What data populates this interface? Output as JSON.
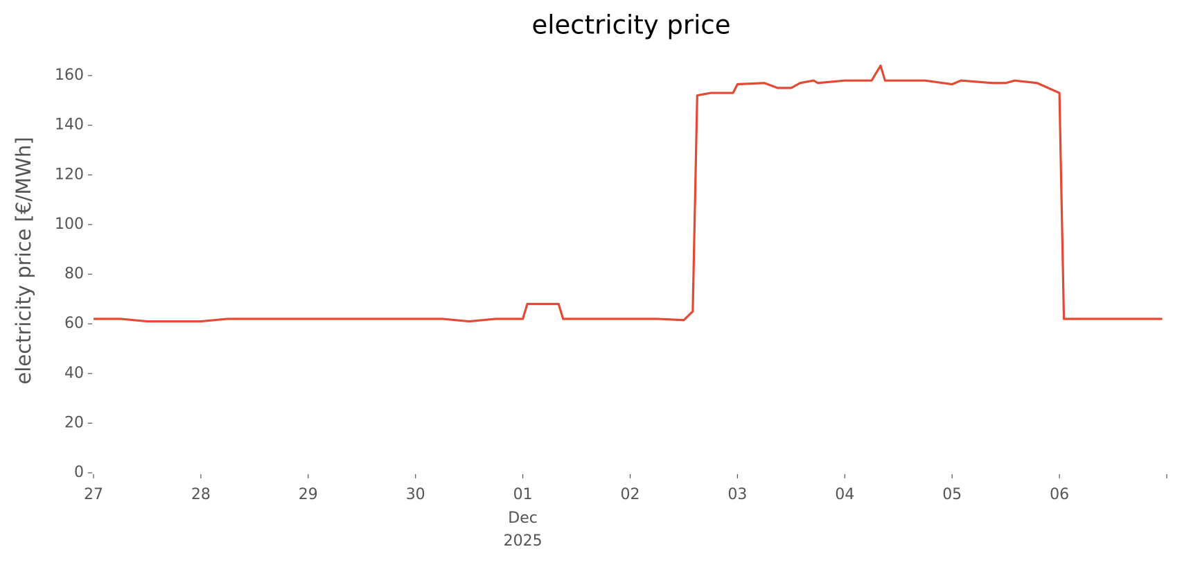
{
  "chart_data": {
    "type": "line",
    "title": "electricity price",
    "y_label": "electricity price [€/MWh]",
    "x_month_label": "Dec",
    "x_year_label": "2025",
    "xlim": [
      "2025-11-27 00:00",
      "2025-12-07 00:00"
    ],
    "xticks": [
      {
        "value": "2025-11-27 00:00",
        "label": "27"
      },
      {
        "value": "2025-11-28 00:00",
        "label": "28"
      },
      {
        "value": "2025-11-29 00:00",
        "label": "29"
      },
      {
        "value": "2025-11-30 00:00",
        "label": "30"
      },
      {
        "value": "2025-12-01 00:00",
        "label": "01"
      },
      {
        "value": "2025-12-02 00:00",
        "label": "02"
      },
      {
        "value": "2025-12-03 00:00",
        "label": "03"
      },
      {
        "value": "2025-12-04 00:00",
        "label": "04"
      },
      {
        "value": "2025-12-05 00:00",
        "label": "05"
      },
      {
        "value": "2025-12-06 00:00",
        "label": "06"
      },
      {
        "value": "2025-12-07 00:00",
        "label": null
      }
    ],
    "ylim": [
      0,
      165
    ],
    "yticks": [
      0,
      20,
      40,
      60,
      80,
      100,
      120,
      140,
      160
    ],
    "grid": false,
    "x": [
      "2025-11-27 00:00",
      "2025-11-27 06:00",
      "2025-11-27 12:00",
      "2025-11-27 18:00",
      "2025-11-28 00:00",
      "2025-11-28 06:00",
      "2025-11-28 12:00",
      "2025-11-28 18:00",
      "2025-11-29 00:00",
      "2025-11-29 06:00",
      "2025-11-29 12:00",
      "2025-11-29 18:00",
      "2025-11-30 00:00",
      "2025-11-30 06:00",
      "2025-11-30 12:00",
      "2025-11-30 18:00",
      "2025-12-01 00:00",
      "2025-12-01 01:00",
      "2025-12-01 06:00",
      "2025-12-01 08:00",
      "2025-12-01 09:00",
      "2025-12-01 12:00",
      "2025-12-01 18:00",
      "2025-12-02 00:00",
      "2025-12-02 06:00",
      "2025-12-02 12:00",
      "2025-12-02 14:00",
      "2025-12-02 15:00",
      "2025-12-02 18:00",
      "2025-12-02 23:00",
      "2025-12-03 00:00",
      "2025-12-03 06:00",
      "2025-12-03 09:00",
      "2025-12-03 12:00",
      "2025-12-03 14:00",
      "2025-12-03 17:00",
      "2025-12-03 18:00",
      "2025-12-04 00:00",
      "2025-12-04 06:00",
      "2025-12-04 08:00",
      "2025-12-04 09:00",
      "2025-12-04 18:00",
      "2025-12-05 00:00",
      "2025-12-05 02:00",
      "2025-12-05 09:00",
      "2025-12-05 12:00",
      "2025-12-05 14:00",
      "2025-12-05 19:00",
      "2025-12-06 00:00",
      "2025-12-06 01:00",
      "2025-12-06 12:00",
      "2025-12-06 23:00"
    ],
    "series": [
      {
        "name": "electricity price",
        "color": "#e24a33",
        "values": [
          62,
          62,
          61,
          61,
          61,
          62,
          62,
          62,
          62,
          62,
          62,
          62,
          62,
          62,
          61,
          62,
          62,
          68,
          68,
          68,
          62,
          62,
          62,
          62,
          62,
          61.5,
          65,
          152,
          153,
          153,
          156.5,
          157,
          155,
          155,
          157,
          158,
          157,
          158,
          158,
          164,
          158,
          158,
          156.5,
          158,
          157,
          157,
          158,
          157,
          153,
          62,
          62,
          62
        ]
      }
    ]
  }
}
